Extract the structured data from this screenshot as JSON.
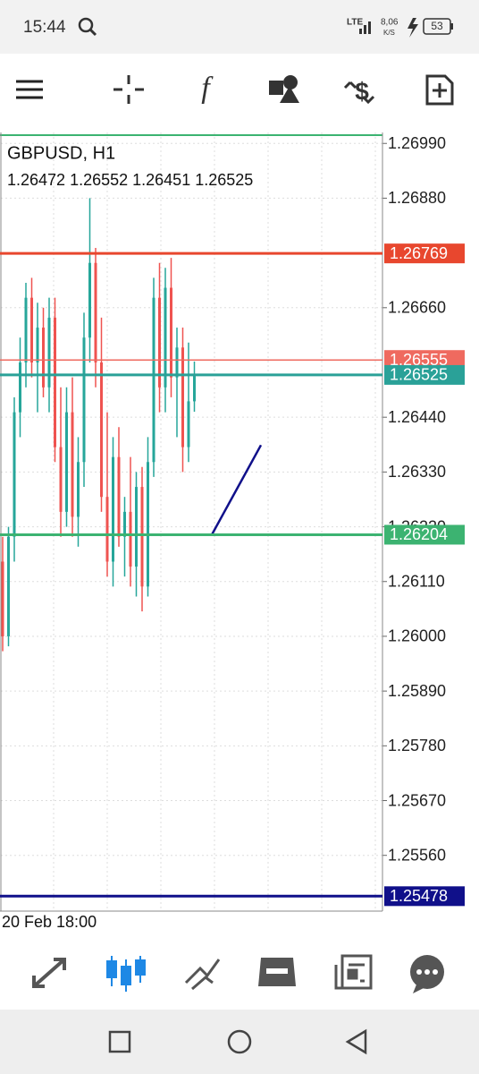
{
  "status": {
    "time": "15:44",
    "network": "LTE",
    "speed": "8,06",
    "speed_unit": "K/S",
    "battery": "53"
  },
  "chart_data": {
    "type": "candlestick",
    "symbol": "GBPUSD, H1",
    "quote": "1.26472 1.26552 1.26451 1.26525",
    "x_label": "20 Feb 18:00",
    "up_color": "#26a69a",
    "down_color": "#ef5350",
    "ylim": [
      1.25448,
      1.27012
    ],
    "yticks": [
      {
        "value": 1.2699,
        "label": "1.26990"
      },
      {
        "value": 1.2688,
        "label": "1.26880"
      },
      {
        "value": 1.2666,
        "label": "1.26660"
      },
      {
        "value": 1.2644,
        "label": "1.26440"
      },
      {
        "value": 1.2633,
        "label": "1.26330"
      },
      {
        "value": 1.2622,
        "label": "1.26220"
      },
      {
        "value": 1.2611,
        "label": "1.26110"
      },
      {
        "value": 1.26,
        "label": "1.26000"
      },
      {
        "value": 1.2589,
        "label": "1.25890"
      },
      {
        "value": 1.2578,
        "label": "1.25780"
      },
      {
        "value": 1.2567,
        "label": "1.25670"
      },
      {
        "value": 1.2556,
        "label": "1.25560"
      }
    ],
    "levels": [
      {
        "price": 1.26769,
        "color": "#e8472e"
      },
      {
        "price": 1.26555,
        "color": "#ef6a5f"
      },
      {
        "price": 1.26525,
        "color": "#2aa198"
      },
      {
        "price": 1.26204,
        "color": "#3cb371"
      },
      {
        "price": 1.25478,
        "color": "#10108a"
      }
    ],
    "trendline": [
      1.26204,
      1.26384
    ],
    "ohlc": [
      [
        1.2615,
        1.262,
        1.2597,
        1.26
      ],
      [
        1.26,
        1.2622,
        1.2598,
        1.262
      ],
      [
        1.262,
        1.2648,
        1.2615,
        1.2645
      ],
      [
        1.2645,
        1.266,
        1.264,
        1.2655
      ],
      [
        1.2655,
        1.2671,
        1.265,
        1.2668
      ],
      [
        1.2668,
        1.2672,
        1.2652,
        1.2655
      ],
      [
        1.2655,
        1.2667,
        1.2645,
        1.2662
      ],
      [
        1.2662,
        1.2666,
        1.2648,
        1.265
      ],
      [
        1.265,
        1.2668,
        1.2645,
        1.2664
      ],
      [
        1.2664,
        1.2668,
        1.2635,
        1.2638
      ],
      [
        1.2638,
        1.265,
        1.262,
        1.2625
      ],
      [
        1.2625,
        1.265,
        1.2622,
        1.2645
      ],
      [
        1.2645,
        1.2652,
        1.262,
        1.2624
      ],
      [
        1.2624,
        1.264,
        1.2618,
        1.2635
      ],
      [
        1.2635,
        1.2665,
        1.263,
        1.266
      ],
      [
        1.266,
        1.2688,
        1.2655,
        1.2675
      ],
      [
        1.2675,
        1.2678,
        1.265,
        1.2655
      ],
      [
        1.2655,
        1.2664,
        1.2625,
        1.2628
      ],
      [
        1.2628,
        1.2645,
        1.2612,
        1.2615
      ],
      [
        1.2615,
        1.264,
        1.261,
        1.2636
      ],
      [
        1.2636,
        1.2642,
        1.2618,
        1.262
      ],
      [
        1.262,
        1.2628,
        1.2612,
        1.2625
      ],
      [
        1.2625,
        1.2636,
        1.261,
        1.2614
      ],
      [
        1.2614,
        1.2633,
        1.2608,
        1.263
      ],
      [
        1.263,
        1.2634,
        1.2605,
        1.261
      ],
      [
        1.261,
        1.264,
        1.2608,
        1.2635
      ],
      [
        1.2635,
        1.2672,
        1.2632,
        1.2668
      ],
      [
        1.2668,
        1.2675,
        1.2645,
        1.265
      ],
      [
        1.265,
        1.2674,
        1.2645,
        1.267
      ],
      [
        1.267,
        1.2676,
        1.2648,
        1.2652
      ],
      [
        1.2652,
        1.2662,
        1.264,
        1.2658
      ],
      [
        1.2658,
        1.2662,
        1.2633,
        1.2638
      ],
      [
        1.2638,
        1.2659,
        1.2635,
        1.26472
      ],
      [
        1.26472,
        1.26552,
        1.26451,
        1.26525
      ]
    ]
  }
}
